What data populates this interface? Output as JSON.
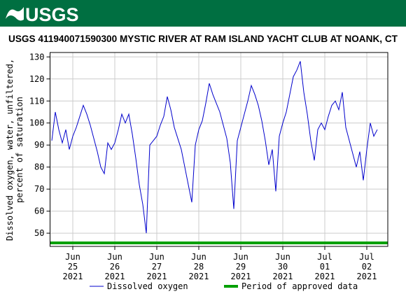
{
  "header": {
    "logo": "USGS"
  },
  "chart_data": {
    "type": "line",
    "title": "USGS 411940071590300 MYSTIC RIVER AT RAM ISLAND YACHT CLUB AT NOANK, CT",
    "y_label": [
      "Dissolved oxygen, water, unfiltered,",
      "percent of saturation"
    ],
    "xlim": [
      "2021-06-24 11:00",
      "2021-07-02 12:00"
    ],
    "xticks": [
      {
        "value": "2021-06-25 00:00",
        "label": [
          "Jun",
          "25",
          "2021"
        ]
      },
      {
        "value": "2021-06-26 00:00",
        "label": [
          "Jun",
          "26",
          "2021"
        ]
      },
      {
        "value": "2021-06-27 00:00",
        "label": [
          "Jun",
          "27",
          "2021"
        ]
      },
      {
        "value": "2021-06-28 00:00",
        "label": [
          "Jun",
          "28",
          "2021"
        ]
      },
      {
        "value": "2021-06-29 00:00",
        "label": [
          "Jun",
          "29",
          "2021"
        ]
      },
      {
        "value": "2021-06-30 00:00",
        "label": [
          "Jun",
          "30",
          "2021"
        ]
      },
      {
        "value": "2021-07-01 00:00",
        "label": [
          "Jul",
          "01",
          "2021"
        ]
      },
      {
        "value": "2021-07-02 00:00",
        "label": [
          "Jul",
          "02",
          "2021"
        ]
      }
    ],
    "ylim": [
      44,
      132
    ],
    "yticks": [
      50,
      60,
      70,
      80,
      90,
      100,
      110,
      120,
      130
    ],
    "grid": true,
    "x": [
      "2021-06-24 12:00",
      "2021-06-24 14:00",
      "2021-06-24 16:00",
      "2021-06-24 18:00",
      "2021-06-24 20:00",
      "2021-06-24 22:00",
      "2021-06-25 00:00",
      "2021-06-25 02:00",
      "2021-06-25 04:00",
      "2021-06-25 06:00",
      "2021-06-25 08:00",
      "2021-06-25 10:00",
      "2021-06-25 12:00",
      "2021-06-25 14:00",
      "2021-06-25 16:00",
      "2021-06-25 18:00",
      "2021-06-25 20:00",
      "2021-06-25 22:00",
      "2021-06-26 00:00",
      "2021-06-26 02:00",
      "2021-06-26 04:00",
      "2021-06-26 06:00",
      "2021-06-26 08:00",
      "2021-06-26 10:00",
      "2021-06-26 12:00",
      "2021-06-26 14:00",
      "2021-06-26 16:00",
      "2021-06-26 18:00",
      "2021-06-26 20:00",
      "2021-06-26 22:00",
      "2021-06-27 00:00",
      "2021-06-27 02:00",
      "2021-06-27 04:00",
      "2021-06-27 06:00",
      "2021-06-27 08:00",
      "2021-06-27 10:00",
      "2021-06-27 12:00",
      "2021-06-27 14:00",
      "2021-06-27 16:00",
      "2021-06-27 18:00",
      "2021-06-27 20:00",
      "2021-06-27 22:00",
      "2021-06-28 00:00",
      "2021-06-28 02:00",
      "2021-06-28 04:00",
      "2021-06-28 06:00",
      "2021-06-28 08:00",
      "2021-06-28 10:00",
      "2021-06-28 12:00",
      "2021-06-28 14:00",
      "2021-06-28 16:00",
      "2021-06-28 18:00",
      "2021-06-28 20:00",
      "2021-06-28 22:00",
      "2021-06-29 00:00",
      "2021-06-29 02:00",
      "2021-06-29 04:00",
      "2021-06-29 06:00",
      "2021-06-29 08:00",
      "2021-06-29 10:00",
      "2021-06-29 12:00",
      "2021-06-29 14:00",
      "2021-06-29 16:00",
      "2021-06-29 18:00",
      "2021-06-29 20:00",
      "2021-06-29 22:00",
      "2021-06-30 00:00",
      "2021-06-30 02:00",
      "2021-06-30 04:00",
      "2021-06-30 06:00",
      "2021-06-30 08:00",
      "2021-06-30 10:00",
      "2021-06-30 12:00",
      "2021-06-30 14:00",
      "2021-06-30 16:00",
      "2021-06-30 18:00",
      "2021-06-30 20:00",
      "2021-06-30 22:00",
      "2021-07-01 00:00",
      "2021-07-01 02:00",
      "2021-07-01 04:00",
      "2021-07-01 06:00",
      "2021-07-01 08:00",
      "2021-07-01 10:00",
      "2021-07-01 12:00",
      "2021-07-01 14:00",
      "2021-07-01 16:00",
      "2021-07-01 18:00",
      "2021-07-01 20:00",
      "2021-07-01 22:00",
      "2021-07-02 00:00",
      "2021-07-02 02:00",
      "2021-07-02 04:00",
      "2021-07-02 06:00"
    ],
    "series": [
      {
        "name": "Dissolved oxygen",
        "color": "#0000cc",
        "values": [
          92,
          105,
          97,
          91,
          97,
          88,
          94,
          98,
          103,
          108,
          104,
          99,
          93,
          87,
          80,
          77,
          91,
          88,
          91,
          97,
          104,
          100,
          104,
          95,
          84,
          72,
          63,
          50,
          90,
          92,
          94,
          99,
          103,
          112,
          106,
          98,
          93,
          88,
          80,
          72,
          64,
          90,
          97,
          101,
          109,
          118,
          113,
          109,
          105,
          99,
          93,
          82,
          61,
          92,
          98,
          104,
          110,
          117,
          113,
          108,
          101,
          92,
          81,
          88,
          69,
          94,
          100,
          105,
          113,
          121,
          124,
          128,
          114,
          104,
          92,
          83,
          97,
          100,
          97,
          103,
          108,
          110,
          106,
          114,
          98,
          92,
          86,
          80,
          87,
          74,
          88,
          100,
          94,
          97
        ]
      }
    ],
    "approved": {
      "name": "Period of approved data",
      "color": "#00a000",
      "period": [
        "2021-06-24 11:00",
        "2021-07-02 12:00"
      ]
    }
  }
}
